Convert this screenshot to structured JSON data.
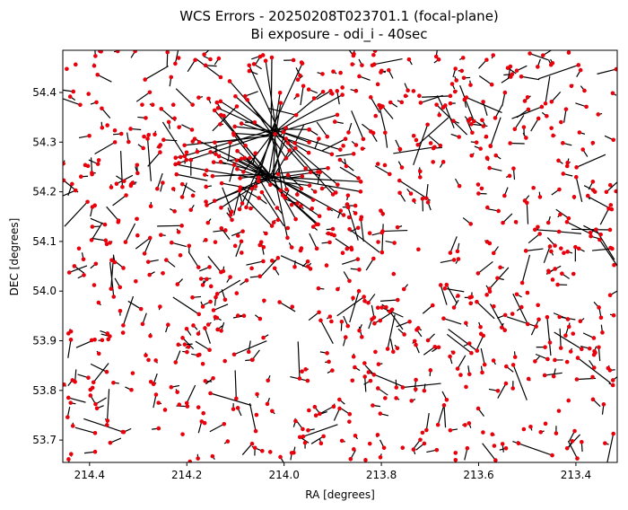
{
  "chart_data": {
    "type": "scatter",
    "title_line1": "WCS Errors - 20250208T023701.1 (focal-plane)",
    "title_line2": "Bi exposure - odi_i - 40sec",
    "xlabel": "RA [degrees]",
    "ylabel": "DEC [degrees]",
    "xlim": [
      214.455,
      213.315
    ],
    "ylim": [
      53.655,
      54.485
    ],
    "x_axis_inverted": true,
    "grid": false,
    "x_ticks": [
      214.4,
      214.2,
      214.0,
      213.8,
      213.6,
      213.4
    ],
    "x_tick_labels": [
      "214.4",
      "214.2",
      "214.0",
      "213.8",
      "213.6",
      "213.4"
    ],
    "y_ticks": [
      53.7,
      53.8,
      53.9,
      54.0,
      54.1,
      54.2,
      54.3,
      54.4
    ],
    "y_tick_labels": [
      "53.7",
      "53.8",
      "53.9",
      "54.0",
      "54.1",
      "54.2",
      "54.3",
      "54.4"
    ],
    "point_color": "#e8000b",
    "vector_color": "#000000",
    "approx_star_count": 900,
    "outlier_cluster_centers": [
      [
        214.03,
        54.23
      ],
      [
        214.02,
        54.32
      ]
    ]
  }
}
